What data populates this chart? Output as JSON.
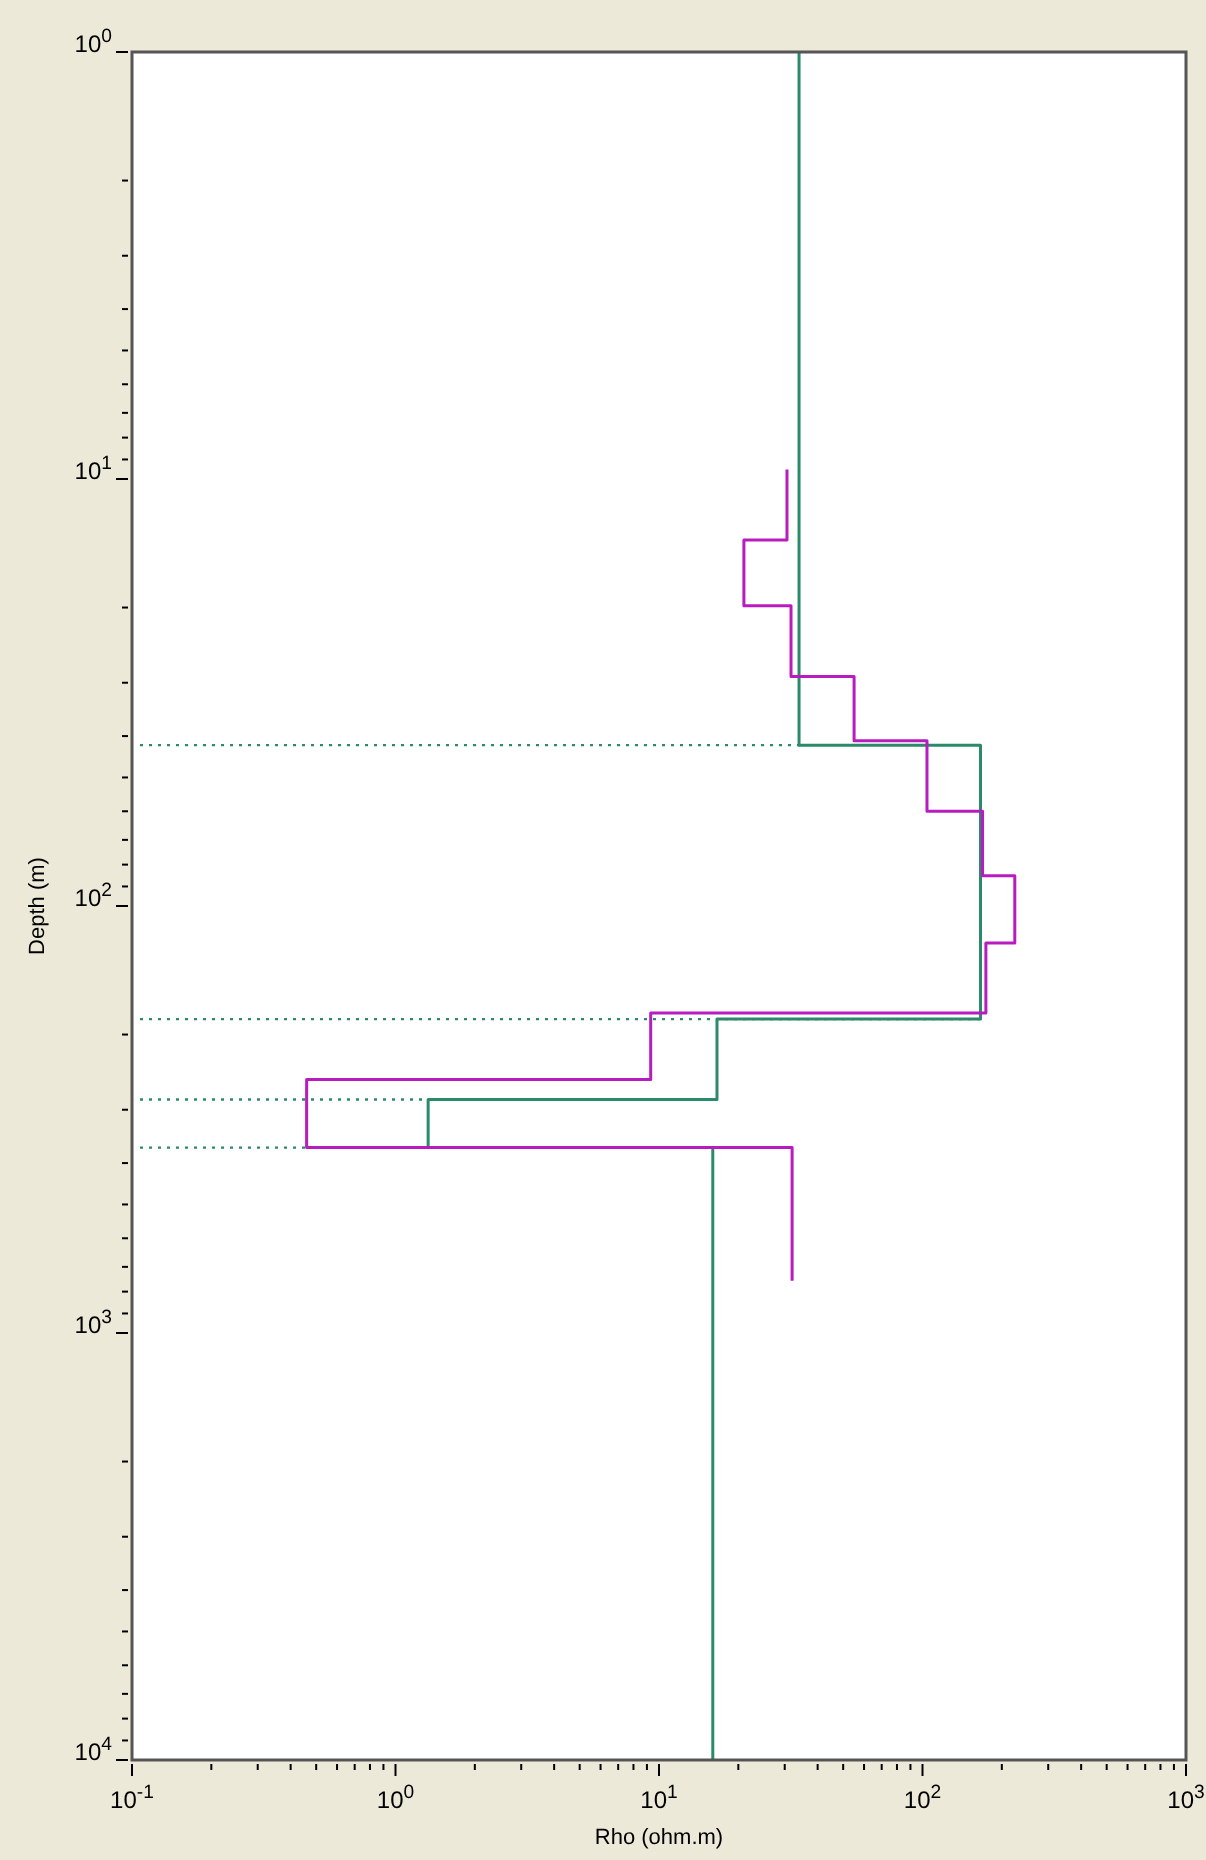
{
  "chart_data": {
    "type": "line",
    "xlabel": "Rho (ohm.m)",
    "ylabel": "Depth (m)",
    "log": "xy",
    "xlim": [
      0.1,
      1000
    ],
    "ylim": [
      10000,
      1
    ],
    "xticks": [
      {
        "value": 0.1,
        "label": "10$^{-1}$"
      },
      {
        "value": 0.2,
        "label": null
      },
      {
        "value": 0.3,
        "label": null
      },
      {
        "value": 0.4,
        "label": null
      },
      {
        "value": 0.5,
        "label": null
      },
      {
        "value": 0.6,
        "label": null
      },
      {
        "value": 0.7,
        "label": null
      },
      {
        "value": 0.8,
        "label": null
      },
      {
        "value": 0.9,
        "label": null
      },
      {
        "value": 1,
        "label": "10$^{0}$"
      },
      {
        "value": 2,
        "label": null
      },
      {
        "value": 3,
        "label": null
      },
      {
        "value": 4,
        "label": null
      },
      {
        "value": 5,
        "label": null
      },
      {
        "value": 6,
        "label": null
      },
      {
        "value": 7,
        "label": null
      },
      {
        "value": 8,
        "label": null
      },
      {
        "value": 9,
        "label": null
      },
      {
        "value": 10,
        "label": "10$^{1}$"
      },
      {
        "value": 20,
        "label": null
      },
      {
        "value": 30,
        "label": null
      },
      {
        "value": 40,
        "label": null
      },
      {
        "value": 50,
        "label": null
      },
      {
        "value": 60,
        "label": null
      },
      {
        "value": 70,
        "label": null
      },
      {
        "value": 80,
        "label": null
      },
      {
        "value": 90,
        "label": null
      },
      {
        "value": 100,
        "label": "10$^{2}$"
      },
      {
        "value": 200,
        "label": null
      },
      {
        "value": 300,
        "label": null
      },
      {
        "value": 400,
        "label": null
      },
      {
        "value": 500,
        "label": null
      },
      {
        "value": 600,
        "label": null
      },
      {
        "value": 700,
        "label": null
      },
      {
        "value": 800,
        "label": null
      },
      {
        "value": 900,
        "label": null
      },
      {
        "value": 1000,
        "label": "10$^{3}$"
      }
    ],
    "yticks": [
      {
        "value": 1,
        "label": "10$^{0}$"
      },
      {
        "value": 2,
        "label": null
      },
      {
        "value": 3,
        "label": null
      },
      {
        "value": 4,
        "label": null
      },
      {
        "value": 5,
        "label": null
      },
      {
        "value": 6,
        "label": null
      },
      {
        "value": 7,
        "label": null
      },
      {
        "value": 8,
        "label": null
      },
      {
        "value": 9,
        "label": null
      },
      {
        "value": 10,
        "label": "10$^{1}$"
      },
      {
        "value": 20,
        "label": null
      },
      {
        "value": 30,
        "label": null
      },
      {
        "value": 40,
        "label": null
      },
      {
        "value": 50,
        "label": null
      },
      {
        "value": 60,
        "label": null
      },
      {
        "value": 70,
        "label": null
      },
      {
        "value": 80,
        "label": null
      },
      {
        "value": 90,
        "label": null
      },
      {
        "value": 100,
        "label": "10$^{2}$"
      },
      {
        "value": 200,
        "label": null
      },
      {
        "value": 300,
        "label": null
      },
      {
        "value": 400,
        "label": null
      },
      {
        "value": 500,
        "label": null
      },
      {
        "value": 600,
        "label": null
      },
      {
        "value": 700,
        "label": null
      },
      {
        "value": 800,
        "label": null
      },
      {
        "value": 900,
        "label": null
      },
      {
        "value": 1000,
        "label": "10$^{3}$"
      },
      {
        "value": 2000,
        "label": null
      },
      {
        "value": 3000,
        "label": null
      },
      {
        "value": 4000,
        "label": null
      },
      {
        "value": 5000,
        "label": null
      },
      {
        "value": 6000,
        "label": null
      },
      {
        "value": 7000,
        "label": null
      },
      {
        "value": 8000,
        "label": null
      },
      {
        "value": 9000,
        "label": null
      },
      {
        "value": 10000,
        "label": "10$^{4}$"
      }
    ],
    "grid": false,
    "marker": "none",
    "line_style": "solid",
    "series": [
      {
        "color": "#2a8a6a",
        "x": [
          34,
          34,
          166,
          166,
          16.6,
          16.6,
          1.33,
          1.33,
          16,
          16
        ],
        "values": [
          1,
          42,
          42,
          184,
          184,
          284,
          284,
          368,
          368,
          10000
        ]
      },
      {
        "color": "#b81cc0",
        "x": [
          30.6,
          30.6,
          21,
          21,
          31.7,
          31.7,
          55,
          55,
          104,
          104,
          169,
          169,
          224,
          224,
          174,
          174,
          9.3,
          9.3,
          0.46,
          0.46,
          32,
          32
        ],
        "values": [
          9.5,
          13.9,
          13.9,
          19.8,
          19.8,
          29,
          29,
          41,
          41,
          60,
          60,
          85,
          85,
          122,
          122,
          178,
          178,
          255,
          255,
          368,
          368,
          754
        ]
      }
    ],
    "ref_lines": [
      {
        "axis": "y",
        "value": 42,
        "color": "#2a8a6a",
        "line_style": "dotted"
      },
      {
        "axis": "y",
        "value": 184,
        "color": "#2a8a6a",
        "line_style": "dotted"
      },
      {
        "axis": "y",
        "value": 284,
        "color": "#2a8a6a",
        "line_style": "dotted"
      },
      {
        "axis": "y",
        "value": 368,
        "color": "#2a8a6a",
        "line_style": "dotted"
      }
    ]
  }
}
